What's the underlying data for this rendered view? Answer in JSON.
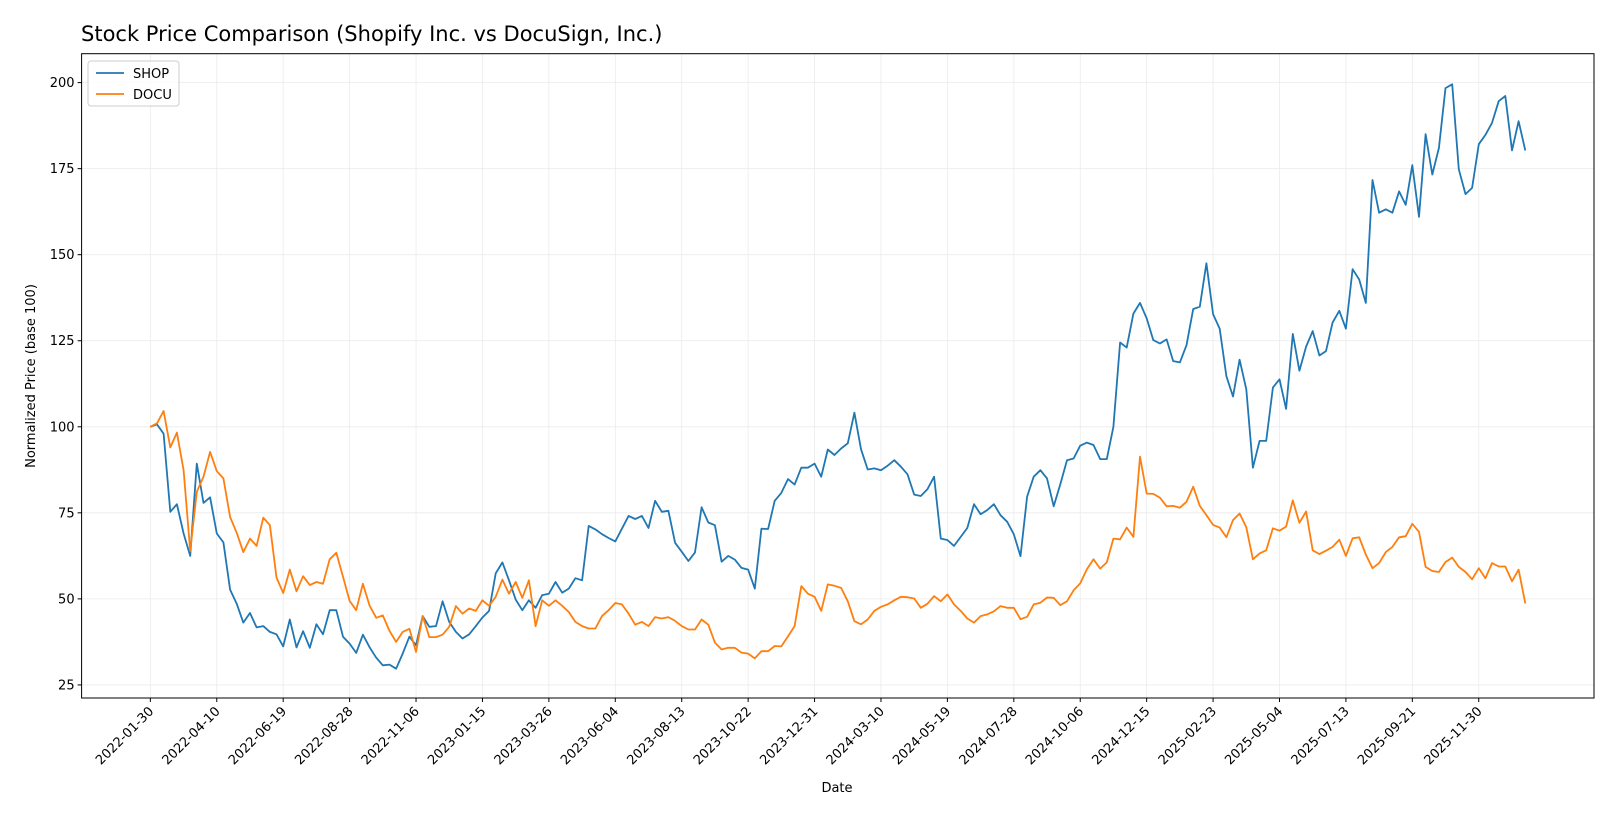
{
  "chart_data": {
    "type": "line",
    "title": "Stock Price Comparison (Shopify Inc. vs DocuSign, Inc.)",
    "xlabel": "Date",
    "ylabel": "Normalized Price (base 100)",
    "x_start_date": "2022-01-30",
    "x_step_days": 7,
    "ylim": [
      21.2,
      208.4
    ],
    "yticks": [
      25,
      50,
      75,
      100,
      125,
      150,
      175,
      200
    ],
    "xticks": [
      "2022-01-30",
      "2022-04-10",
      "2022-06-19",
      "2022-08-28",
      "2022-11-06",
      "2023-01-15",
      "2023-03-26",
      "2023-06-04",
      "2023-08-13",
      "2023-10-22",
      "2023-12-31",
      "2024-03-10",
      "2024-05-19",
      "2024-07-28",
      "2024-10-06",
      "2024-12-15",
      "2025-02-23",
      "2025-05-04",
      "2025-07-13",
      "2025-09-21",
      "2025-11-30"
    ],
    "grid": true,
    "legend_position": "top-left",
    "series": [
      {
        "name": "SHOP",
        "color": "#1f77b4",
        "values": [
          100,
          100.7,
          98,
          75.3,
          77.5,
          69,
          62.5,
          89.3,
          77.9,
          79.5,
          69,
          66.4,
          52.7,
          48.6,
          43.1,
          45.9,
          41.7,
          42.1,
          40.4,
          39.7,
          36.2,
          44,
          35.9,
          40.6,
          35.8,
          42.6,
          39.7,
          46.7,
          46.7,
          39,
          37,
          34.3,
          39.6,
          36,
          32.9,
          30.7,
          30.9,
          29.7,
          34.1,
          39,
          36.5,
          45,
          41.9,
          42.1,
          49.3,
          43.3,
          40.4,
          38.5,
          39.7,
          42.1,
          44.6,
          46.5,
          57.4,
          60.6,
          55.4,
          49.8,
          46.7,
          49.6,
          47.4,
          51.1,
          51.5,
          54.9,
          51.8,
          53,
          56,
          55.4,
          71.2,
          70.2,
          68.8,
          67.7,
          66.7,
          70.4,
          74.1,
          73.2,
          74.1,
          70.6,
          78.5,
          75.3,
          75.6,
          66.3,
          63.7,
          61,
          63.5,
          76.6,
          72.2,
          71.4,
          60.8,
          62.5,
          61.4,
          59,
          58.5,
          53,
          70.4,
          70.3,
          78.5,
          80.8,
          84.8,
          83.2,
          88.1,
          88.1,
          89.3,
          85.5,
          93.4,
          91.8,
          93.7,
          95.2,
          104.1,
          93.5,
          87.6,
          87.9,
          87.4,
          88.7,
          90.3,
          88.4,
          86.2,
          80.3,
          79.9,
          81.9,
          85.5,
          67.5,
          67.1,
          65.4,
          68,
          70.6,
          77.5,
          74.6,
          75.8,
          77.5,
          74.3,
          72.4,
          68.8,
          62.4,
          79.7,
          85.5,
          87.4,
          85,
          76.9,
          83.3,
          90.3,
          90.8,
          94.5,
          95.4,
          94.7,
          90.6,
          90.6,
          100,
          124.5,
          123,
          132.9,
          136,
          131.5,
          125.2,
          124.2,
          125.4,
          119.1,
          118.7,
          123.7,
          134.2,
          134.9,
          147.5,
          132.7,
          128.5,
          114.7,
          108.8,
          119.5,
          110.9,
          88.1,
          95.9,
          95.9,
          111.4,
          113.8,
          105.2,
          127,
          116.3,
          123.3,
          127.8,
          120.7,
          122,
          130.3,
          133.7,
          128.5,
          145.8,
          142.8,
          136,
          171.7,
          162.2,
          163.2,
          162.2,
          168.4,
          164.5,
          176,
          161,
          185,
          173.3,
          181,
          198.4,
          199.5,
          174.8,
          167.6,
          169.4,
          182.1,
          184.8,
          188.3,
          194.6,
          196.1,
          180.3,
          188.8,
          180.3
        ]
      },
      {
        "name": "DOCU",
        "color": "#ff7f0e",
        "values": [
          100,
          101,
          104.6,
          94,
          98.3,
          87.4,
          63.9,
          81.1,
          85.5,
          92.7,
          87.1,
          85,
          73.8,
          69.2,
          63.6,
          67.5,
          65.4,
          73.6,
          71.4,
          56.2,
          51.7,
          58.5,
          52.2,
          56.6,
          54,
          54.9,
          54.4,
          61.5,
          63.4,
          56.4,
          49.4,
          46.7,
          54.4,
          48.1,
          44.5,
          45.2,
          40.7,
          37.5,
          40.4,
          41.3,
          34.6,
          45,
          38.9,
          38.9,
          39.6,
          41.9,
          47.9,
          45.7,
          47.2,
          46.5,
          49.6,
          48,
          50.6,
          55.6,
          51.5,
          54.9,
          50.3,
          55.4,
          42.1,
          49.6,
          48,
          49.6,
          48,
          46.2,
          43.3,
          42.1,
          41.4,
          41.4,
          45,
          46.7,
          48.8,
          48.4,
          45.7,
          42.5,
          43.3,
          42.1,
          44.7,
          44.3,
          44.7,
          43.6,
          42.1,
          41.1,
          41.1,
          44,
          42.5,
          37.3,
          35.3,
          35.8,
          35.8,
          34.4,
          34.1,
          32.7,
          34.8,
          34.8,
          36.3,
          36.2,
          39.1,
          42.1,
          53.7,
          51.5,
          50.6,
          46.5,
          54.2,
          53.8,
          53.2,
          49.3,
          43.5,
          42.6,
          44,
          46.5,
          47.7,
          48.4,
          49.6,
          50.6,
          50.5,
          50.1,
          47.4,
          48.6,
          50.8,
          49.3,
          51.3,
          48.4,
          46.5,
          44.3,
          43.1,
          45,
          45.5,
          46.4,
          47.9,
          47.4,
          47.4,
          44.1,
          44.8,
          48.4,
          48.9,
          50.4,
          50.3,
          48.2,
          49.3,
          52.5,
          54.5,
          58.6,
          61.5,
          58.8,
          60.6,
          67.5,
          67.3,
          70.7,
          68,
          91.3,
          80.6,
          80.5,
          79.4,
          76.9,
          77,
          76.5,
          78.2,
          82.6,
          77,
          74.3,
          71.5,
          70.7,
          67.9,
          72.9,
          74.8,
          70.8,
          61.5,
          63.2,
          64.1,
          70.5,
          69.8,
          71,
          78.6,
          72.1,
          75.4,
          64.1,
          63,
          64,
          65.1,
          67.2,
          62.5,
          67.6,
          67.9,
          62.9,
          58.9,
          60.4,
          63.6,
          65.1,
          67.9,
          68.2,
          71.8,
          69.5,
          59.3,
          58.1,
          57.8,
          60.7,
          62,
          59.3,
          57.8,
          55.7,
          58.9,
          56,
          60.4,
          59.4,
          59.4,
          55.1,
          58.5,
          48.7
        ]
      }
    ]
  }
}
